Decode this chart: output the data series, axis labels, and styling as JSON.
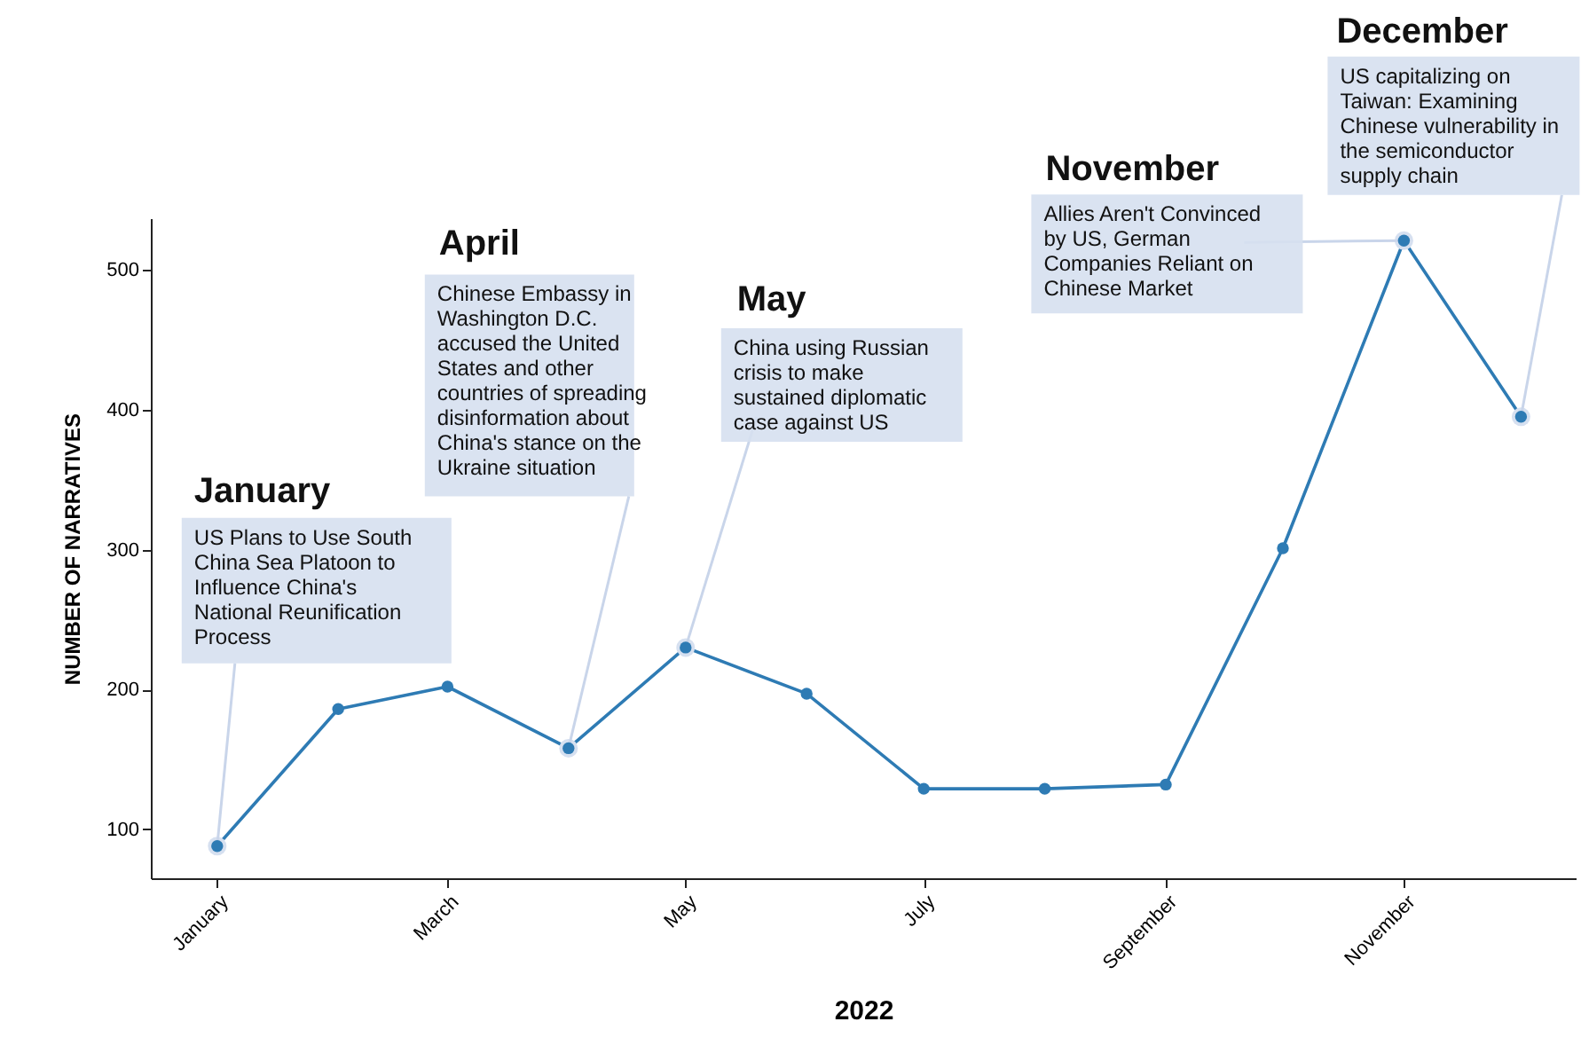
{
  "chart_data": {
    "type": "line",
    "x": [
      "2022-01-01",
      "2022-02-01",
      "2022-03-01",
      "2022-04-01",
      "2022-05-01",
      "2022-06-01",
      "2022-07-01",
      "2022-08-01",
      "2022-09-01",
      "2022-10-01",
      "2022-11-01",
      "2022-12-01"
    ],
    "series": [
      {
        "color": "#2e7bb4",
        "values": [
          88,
          186,
          202,
          158,
          230,
          197,
          129,
          129,
          132,
          301,
          521,
          395
        ]
      }
    ],
    "xlim": [
      "2021-12-15",
      "2022-12-15"
    ],
    "xticks": [
      {
        "value": "2022-01-01",
        "label": "January"
      },
      {
        "value": "2022-03-01",
        "label": "March"
      },
      {
        "value": "2022-05-01",
        "label": "May"
      },
      {
        "value": "2022-07-01",
        "label": "July"
      },
      {
        "value": "2022-09-01",
        "label": "September"
      },
      {
        "value": "2022-11-01",
        "label": "November"
      }
    ],
    "ylim": [
      65,
      537
    ],
    "yticks": [
      100,
      200,
      300,
      400,
      500
    ],
    "xlabel": "2022",
    "ylabel": "NUMBER OF NARRATIVES",
    "marker": "circle",
    "grid": false,
    "annotations": [
      "January",
      {
        "text": "US Plans to Use South\nChina Sea Platoon to\nInfluence China's\nNational Reunification\nProcess",
        "x": "2022-01-01",
        "y": 88
      },
      "April",
      {
        "text": "Chinese Embassy in\nWashington D.C.\naccused the United\nStates and other\ncountries of spreading\ndisinformation about\nChina's stance on the\nUkraine situation",
        "x": "2022-04-01",
        "y": 158
      },
      "May",
      {
        "text": "China using Russian\ncrisis to make\nsustained diplomatic\ncase against US",
        "x": "2022-05-01",
        "y": 230
      },
      "November",
      {
        "text": "Allies Aren't Convinced\nby US, German\nCompanies Reliant on\nChinese Market",
        "x": "2022-11-01",
        "y": 521
      },
      "December",
      {
        "text": "US capitalizing on\nTaiwan: Examining\nChinese vulnerability in\nthe semiconductor\nsupply chain",
        "x": "2022-12-01",
        "y": 395
      }
    ]
  }
}
